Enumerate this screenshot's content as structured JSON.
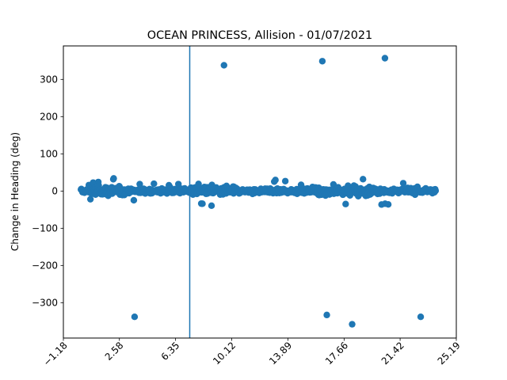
{
  "chart_data": {
    "type": "scatter",
    "title": "OCEAN PRINCESS, Allision - 01/07/2021",
    "xlabel": "",
    "ylabel": "Change in Heading (deg)",
    "xlim": [
      -1.18,
      25.19
    ],
    "ylim": [
      -395,
      390
    ],
    "xticks": [
      -1.18,
      2.58,
      6.35,
      10.12,
      13.89,
      17.66,
      21.42,
      25.19
    ],
    "xtick_labels": [
      "−1.18",
      "2.58",
      "6.35",
      "10.12",
      "13.89",
      "17.66",
      "21.42",
      "25.19"
    ],
    "yticks": [
      -300,
      -200,
      -100,
      0,
      100,
      200,
      300
    ],
    "ytick_labels": [
      "−300",
      "−200",
      "−100",
      "0",
      "100",
      "200",
      "300"
    ],
    "grid": false,
    "vertical_line_x": 7.3,
    "marker_color": "#1f77b4",
    "line_color": "#1f77b4",
    "outlier_points": [
      [
        3.6,
        -338
      ],
      [
        9.6,
        338
      ],
      [
        16.2,
        349
      ],
      [
        16.5,
        -333
      ],
      [
        18.2,
        -358
      ],
      [
        20.4,
        357
      ],
      [
        22.8,
        -338
      ]
    ],
    "noise_band": {
      "x_range": [
        0.0,
        23.8
      ],
      "typical_spread_deg": 8,
      "max_spread_deg": 50
    }
  }
}
